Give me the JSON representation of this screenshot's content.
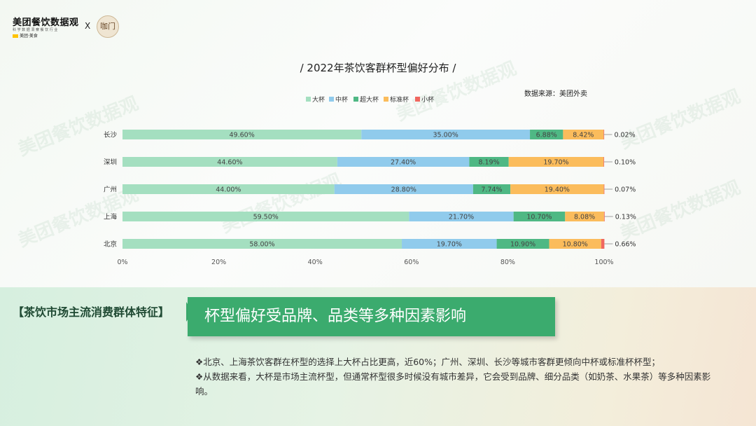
{
  "header": {
    "logo_title": "美团餐饮数据观",
    "logo_subtitle": "科 学 数 据 洞 察 餐 饮 行 业",
    "logo_brand": "美团·美食",
    "separator": "X",
    "partner_logo_text": "咖门"
  },
  "watermark_text": "美团餐饮数据观",
  "source": "数据来源：美团外卖",
  "colors": {
    "大杯": "#a4dfc0",
    "中杯": "#90cbec",
    "超大杯": "#4fb884",
    "标准杯": "#fbbc5c",
    "小杯": "#f0675f",
    "accent": "#3bab6e"
  },
  "chart_data": {
    "type": "bar",
    "orientation": "horizontal",
    "stacked": true,
    "percent": true,
    "title": "/ 2022年茶饮客群杯型偏好分布 /",
    "categories": [
      "长沙",
      "深圳",
      "广州",
      "上海",
      "北京"
    ],
    "series": [
      {
        "name": "大杯",
        "values": [
          49.6,
          44.6,
          44.0,
          59.5,
          58.0
        ],
        "labels": [
          "49.60%",
          "44.60%",
          "44.00%",
          "59.50%",
          "58.00%"
        ]
      },
      {
        "name": "中杯",
        "values": [
          35.0,
          27.4,
          28.8,
          21.7,
          19.7
        ],
        "labels": [
          "35.00%",
          "27.40%",
          "28.80%",
          "21.70%",
          "19.70%"
        ]
      },
      {
        "name": "超大杯",
        "values": [
          6.88,
          8.19,
          7.74,
          10.7,
          10.9
        ],
        "labels": [
          "6.88%",
          "8.19%",
          "7.74%",
          "10.70%",
          "10.90%"
        ]
      },
      {
        "name": "标准杯",
        "values": [
          8.42,
          19.7,
          19.4,
          8.08,
          10.8
        ],
        "labels": [
          "8.42%",
          "19.70%",
          "19.40%",
          "8.08%",
          "10.80%"
        ]
      },
      {
        "name": "小杯",
        "values": [
          0.02,
          0.1,
          0.07,
          0.13,
          0.66
        ],
        "labels": [
          "0.02%",
          "0.10%",
          "0.07%",
          "0.13%",
          "0.66%"
        ]
      }
    ],
    "xticks": [
      "0%",
      "20%",
      "40%",
      "60%",
      "80%",
      "100%"
    ],
    "xlim": [
      0,
      100
    ],
    "legend_position": "top",
    "grid": false
  },
  "section": {
    "label": "【茶饮市场主流消费群体特征】",
    "headline": "杯型偏好受品牌、品类等多种因素影响"
  },
  "bullets": [
    "❖北京、上海茶饮客群在杯型的选择上大杯占比更高，近60%；广州、深圳、长沙等城市客群更倾向中杯或标准杯杯型；",
    "❖从数据来看，大杯是市场主流杯型，但通常杯型很多时候没有城市差异，它会受到品牌、细分品类（如奶茶、水果茶）等多种因素影响。"
  ]
}
